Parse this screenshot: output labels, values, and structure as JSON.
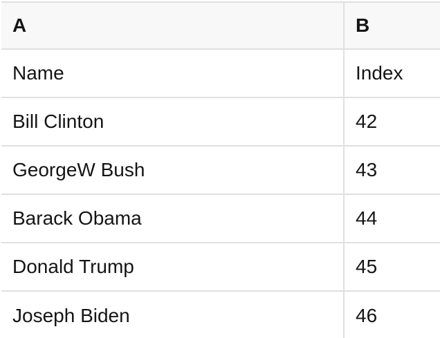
{
  "colors": {
    "header_background": "#f8f8f8",
    "border": "#e0e0e0",
    "text": "#151515",
    "row_background": "#ffffff"
  },
  "sheet": {
    "column_letters": [
      "A",
      "B"
    ],
    "rows": [
      [
        "Name",
        "Index"
      ],
      [
        "Bill Clinton",
        "42"
      ],
      [
        "GeorgeW Bush",
        "43"
      ],
      [
        "Barack Obama",
        "44"
      ],
      [
        "Donald Trump",
        "45"
      ],
      [
        "Joseph Biden",
        "46"
      ]
    ]
  }
}
